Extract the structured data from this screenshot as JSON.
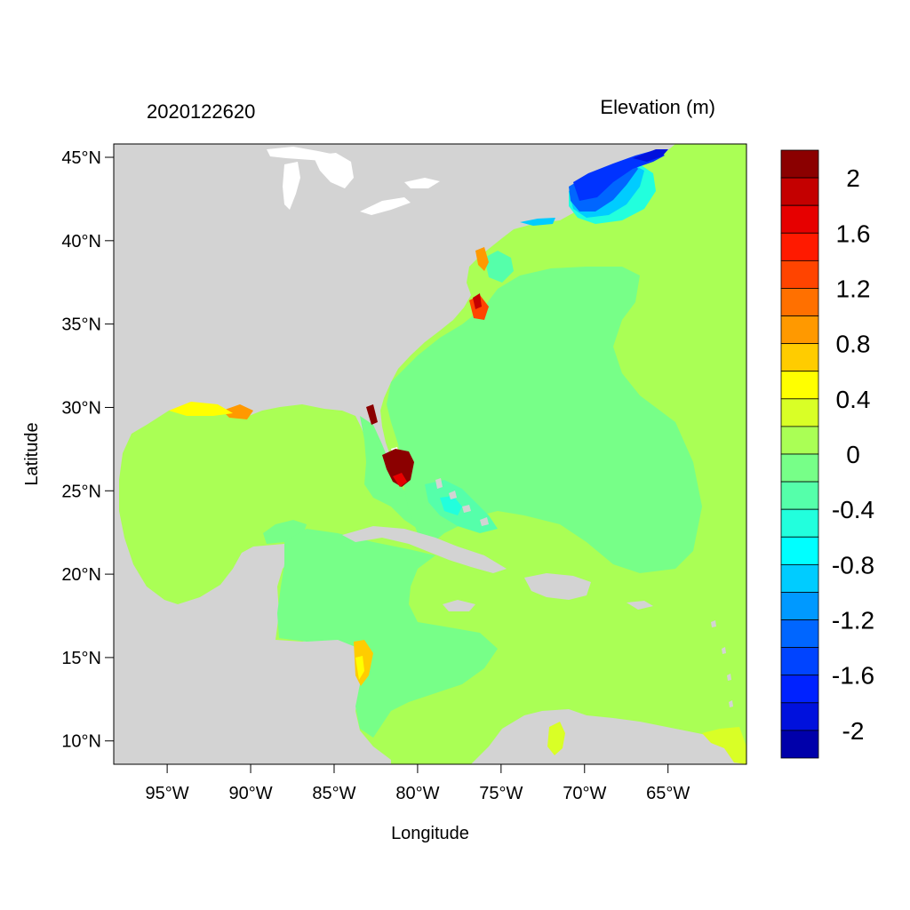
{
  "map": {
    "time_label": "2020122620",
    "variable_label": "Elevation (m)",
    "x_axis_label": "Longitude",
    "y_axis_label": "Latitude",
    "lon_range": [
      -98.2,
      -60.3
    ],
    "lat_range": [
      8.6,
      45.8
    ],
    "lon_ticks": [
      -95,
      -90,
      -85,
      -80,
      -75,
      -70,
      -65
    ],
    "lon_tick_labels": [
      "95°W",
      "90°W",
      "85°W",
      "80°W",
      "75°W",
      "70°W",
      "65°W"
    ],
    "lat_ticks": [
      10,
      15,
      20,
      25,
      30,
      35,
      40,
      45
    ],
    "lat_tick_labels": [
      "10°N",
      "15°N",
      "20°N",
      "25°N",
      "30°N",
      "35°N",
      "40°N",
      "45°N"
    ],
    "land_color": "#d3d3d3",
    "ocean_base_color": "#aaff55"
  },
  "colorbar": {
    "labels": [
      "2",
      "1.6",
      "1.2",
      "0.8",
      "0.4",
      "0",
      "-0.4",
      "-0.8",
      "-1.2",
      "-1.6",
      "-2"
    ],
    "colors_top_to_bottom": [
      "#8b0000",
      "#c40000",
      "#e60000",
      "#ff1a00",
      "#ff4400",
      "#ff7000",
      "#ff9900",
      "#ffcc00",
      "#ffff00",
      "#d9ff26",
      "#aaff55",
      "#77ff88",
      "#55ffaa",
      "#22ffdd",
      "#00ffff",
      "#00ccff",
      "#0099ff",
      "#0066ff",
      "#0044ff",
      "#0022ff",
      "#0011dd",
      "#0000aa"
    ]
  }
}
